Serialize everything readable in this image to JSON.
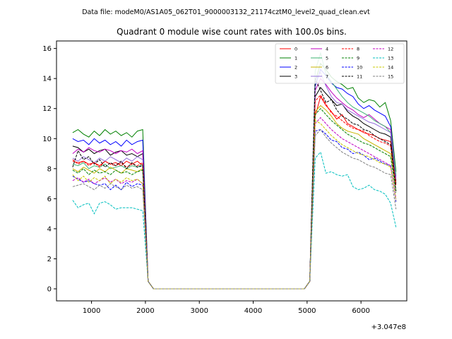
{
  "chart_data": {
    "type": "line",
    "suptitle": "Data file: modeM0/AS1A05_062T01_9000003132_21174cztM0_level2_quad_clean.evt",
    "title": "Quadrant 0 module wise count rates with 100.0s bins.",
    "xlabel": "",
    "ylabel": "",
    "x_offset_label": "+3.047e8",
    "xlim": [
      350,
      6850
    ],
    "ylim": [
      -0.8,
      16.5
    ],
    "x_ticks": [
      1000,
      2000,
      3000,
      4000,
      5000,
      6000
    ],
    "x_tick_labels": [
      "1000",
      "2000",
      "3000",
      "4000",
      "5000",
      "6000"
    ],
    "y_ticks": [
      0,
      2,
      4,
      6,
      8,
      10,
      12,
      14,
      16
    ],
    "y_tick_labels": [
      "0",
      "2",
      "4",
      "6",
      "8",
      "10",
      "12",
      "14",
      "16"
    ],
    "grid": false,
    "legend": "top-right",
    "x": [
      650,
      750,
      850,
      950,
      1050,
      1150,
      1250,
      1350,
      1450,
      1550,
      1650,
      1750,
      1850,
      1950,
      2050,
      2150,
      2250,
      2350,
      2450,
      2550,
      2650,
      2750,
      2850,
      2950,
      3050,
      3150,
      3250,
      3350,
      3450,
      3550,
      3650,
      3750,
      3850,
      3950,
      4050,
      4150,
      4250,
      4350,
      4450,
      4550,
      4650,
      4750,
      4850,
      4950,
      5050,
      5150,
      5250,
      5350,
      5450,
      5550,
      5650,
      5750,
      5850,
      5950,
      6050,
      6150,
      6250,
      6350,
      6450,
      6550,
      6650
    ],
    "series": [
      {
        "name": "0",
        "color": "#ff0000",
        "dash": "solid",
        "values": [
          8.5,
          8.4,
          8.5,
          8.3,
          8.4,
          8.2,
          8.5,
          8.3,
          8.4,
          8.2,
          8.5,
          8.3,
          8.5,
          8.2,
          0.5,
          0,
          0,
          0,
          0,
          0,
          0,
          0,
          0,
          0,
          0,
          0,
          0,
          0,
          0,
          0,
          0,
          0,
          0,
          0,
          0,
          0,
          0,
          0,
          0,
          0,
          0,
          0,
          0,
          0,
          0.5,
          11.5,
          12.8,
          12.2,
          11.8,
          11.3,
          11.6,
          11.0,
          10.8,
          10.6,
          10.4,
          10.3,
          10.2,
          10.0,
          9.9,
          9.8,
          7.2
        ]
      },
      {
        "name": "1",
        "color": "#008000",
        "dash": "solid",
        "values": [
          10.4,
          10.6,
          10.3,
          10.1,
          10.5,
          10.2,
          10.6,
          10.3,
          10.5,
          10.2,
          10.4,
          10.1,
          10.5,
          10.6,
          0.5,
          0,
          0,
          0,
          0,
          0,
          0,
          0,
          0,
          0,
          0,
          0,
          0,
          0,
          0,
          0,
          0,
          0,
          0,
          0,
          0,
          0,
          0,
          0,
          0,
          0,
          0,
          0,
          0,
          0,
          0.5,
          13.8,
          15.0,
          14.6,
          14.1,
          13.8,
          13.6,
          13.3,
          13.4,
          12.7,
          12.4,
          12.6,
          12.5,
          12.1,
          12.4,
          11.2,
          7.8
        ]
      },
      {
        "name": "2",
        "color": "#0000ff",
        "dash": "solid",
        "values": [
          10.0,
          9.8,
          9.9,
          9.6,
          10.0,
          9.7,
          9.9,
          9.6,
          9.8,
          9.5,
          9.9,
          9.6,
          9.8,
          9.9,
          0.5,
          0,
          0,
          0,
          0,
          0,
          0,
          0,
          0,
          0,
          0,
          0,
          0,
          0,
          0,
          0,
          0,
          0,
          0,
          0,
          0,
          0,
          0,
          0,
          0,
          0,
          0,
          0,
          0,
          0,
          0.5,
          13.5,
          14.6,
          14.2,
          13.7,
          13.4,
          13.3,
          13.0,
          12.8,
          12.3,
          12.0,
          12.2,
          11.9,
          11.7,
          11.5,
          10.8,
          7.5
        ]
      },
      {
        "name": "3",
        "color": "#000000",
        "dash": "solid",
        "values": [
          9.5,
          9.4,
          9.1,
          9.3,
          9.0,
          9.2,
          9.3,
          8.9,
          9.1,
          9.2,
          8.9,
          9.0,
          8.8,
          9.0,
          0.5,
          0,
          0,
          0,
          0,
          0,
          0,
          0,
          0,
          0,
          0,
          0,
          0,
          0,
          0,
          0,
          0,
          0,
          0,
          0,
          0,
          0,
          0,
          0,
          0,
          0,
          0,
          0,
          0,
          0,
          0.5,
          12.8,
          13.4,
          13.0,
          12.6,
          12.2,
          12.3,
          11.8,
          11.5,
          11.3,
          11.0,
          10.8,
          10.6,
          10.4,
          10.3,
          10.1,
          7.0
        ]
      },
      {
        "name": "4",
        "color": "#c000c0",
        "dash": "solid",
        "values": [
          9.0,
          9.3,
          9.1,
          9.4,
          9.2,
          9.1,
          9.3,
          9.2,
          9.0,
          9.2,
          9.1,
          9.3,
          9.0,
          9.2,
          0.5,
          0,
          0,
          0,
          0,
          0,
          0,
          0,
          0,
          0,
          0,
          0,
          0,
          0,
          0,
          0,
          0,
          0,
          0,
          0,
          0,
          0,
          0,
          0,
          0,
          0,
          0,
          0,
          0,
          0,
          0.5,
          13.2,
          14.0,
          13.6,
          13.1,
          12.7,
          12.4,
          12.1,
          11.9,
          11.6,
          11.4,
          11.6,
          11.3,
          11.0,
          10.8,
          10.6,
          7.4
        ]
      },
      {
        "name": "5",
        "color": "#3cb371",
        "dash": "solid",
        "values": [
          8.3,
          8.2,
          8.4,
          8.0,
          8.2,
          8.1,
          8.3,
          8.0,
          8.1,
          8.2,
          8.0,
          8.2,
          8.1,
          8.3,
          0.5,
          0,
          0,
          0,
          0,
          0,
          0,
          0,
          0,
          0,
          0,
          0,
          0,
          0,
          0,
          0,
          0,
          0,
          0,
          0,
          0,
          0,
          0,
          0,
          0,
          0,
          0,
          0,
          0,
          0,
          0.5,
          14.5,
          15.7,
          14.3,
          13.8,
          13.3,
          12.8,
          12.4,
          12.1,
          11.9,
          11.7,
          11.5,
          11.2,
          11.0,
          10.8,
          10.4,
          7.6
        ]
      },
      {
        "name": "6",
        "color": "#c8b400",
        "dash": "solid",
        "values": [
          8.0,
          7.8,
          8.1,
          7.9,
          7.7,
          8.0,
          7.8,
          8.1,
          7.9,
          7.7,
          8.0,
          7.9,
          7.8,
          8.0,
          0.5,
          0,
          0,
          0,
          0,
          0,
          0,
          0,
          0,
          0,
          0,
          0,
          0,
          0,
          0,
          0,
          0,
          0,
          0,
          0,
          0,
          0,
          0,
          0,
          0,
          0,
          0,
          0,
          0,
          0,
          0.5,
          11.8,
          12.2,
          11.9,
          11.5,
          11.0,
          10.7,
          10.5,
          10.4,
          10.3,
          10.0,
          9.8,
          9.6,
          9.4,
          9.2,
          9.0,
          6.5
        ]
      },
      {
        "name": "7",
        "color": "#9370db",
        "dash": "solid",
        "values": [
          8.7,
          8.5,
          8.8,
          8.6,
          8.4,
          8.7,
          8.5,
          8.8,
          8.6,
          8.4,
          8.7,
          8.5,
          8.8,
          8.6,
          0.5,
          0,
          0,
          0,
          0,
          0,
          0,
          0,
          0,
          0,
          0,
          0,
          0,
          0,
          0,
          0,
          0,
          0,
          0,
          0,
          0,
          0,
          0,
          0,
          0,
          0,
          0,
          0,
          0,
          0,
          0.5,
          13.9,
          14.4,
          13.5,
          12.8,
          12.4,
          12.3,
          11.9,
          11.7,
          11.5,
          11.3,
          11.1,
          11.0,
          10.8,
          10.6,
          10.4,
          7.3
        ]
      },
      {
        "name": "8",
        "color": "#ff0000",
        "dash": "dashed",
        "values": [
          8.6,
          8.3,
          8.5,
          8.2,
          8.4,
          8.1,
          8.5,
          8.3,
          8.2,
          8.4,
          8.1,
          8.3,
          8.2,
          8.4,
          0.5,
          0,
          0,
          0,
          0,
          0,
          0,
          0,
          0,
          0,
          0,
          0,
          0,
          0,
          0,
          0,
          0,
          0,
          0,
          0,
          0,
          0,
          0,
          0,
          0,
          0,
          0,
          0,
          0,
          0,
          0.5,
          12.5,
          12.9,
          12.3,
          11.7,
          11.5,
          11.2,
          10.9,
          10.7,
          10.6,
          10.5,
          10.2,
          10.0,
          9.8,
          9.7,
          9.5,
          6.9
        ]
      },
      {
        "name": "9",
        "color": "#008000",
        "dash": "dashed",
        "values": [
          7.9,
          7.7,
          8.0,
          7.6,
          7.9,
          7.7,
          7.8,
          7.6,
          7.9,
          7.7,
          7.8,
          7.6,
          7.8,
          7.9,
          0.5,
          0,
          0,
          0,
          0,
          0,
          0,
          0,
          0,
          0,
          0,
          0,
          0,
          0,
          0,
          0,
          0,
          0,
          0,
          0,
          0,
          0,
          0,
          0,
          0,
          0,
          0,
          0,
          0,
          0,
          0.5,
          11.6,
          12.0,
          11.6,
          11.2,
          10.9,
          10.6,
          10.3,
          10.1,
          9.9,
          9.7,
          9.6,
          9.4,
          9.2,
          9.0,
          8.8,
          6.4
        ]
      },
      {
        "name": "10",
        "color": "#0000ff",
        "dash": "dashed",
        "values": [
          7.5,
          7.3,
          7.1,
          7.2,
          7.0,
          6.9,
          7.0,
          6.6,
          6.9,
          6.6,
          7.1,
          6.8,
          7.0,
          6.9,
          0.5,
          0,
          0,
          0,
          0,
          0,
          0,
          0,
          0,
          0,
          0,
          0,
          0,
          0,
          0,
          0,
          0,
          0,
          0,
          0,
          0,
          0,
          0,
          0,
          0,
          0,
          0,
          0,
          0,
          0,
          0.5,
          10.5,
          10.6,
          10.3,
          9.9,
          9.8,
          9.4,
          9.3,
          9.0,
          9.1,
          8.9,
          8.6,
          8.7,
          8.5,
          8.3,
          8.2,
          5.8
        ]
      },
      {
        "name": "11",
        "color": "#000000",
        "dash": "dashed",
        "values": [
          8.1,
          9.2,
          8.6,
          8.8,
          8.3,
          8.6,
          8.1,
          8.4,
          8.2,
          8.5,
          8.0,
          8.4,
          8.1,
          8.2,
          0.5,
          0,
          0,
          0,
          0,
          0,
          0,
          0,
          0,
          0,
          0,
          0,
          0,
          0,
          0,
          0,
          0,
          0,
          0,
          0,
          0,
          0,
          0,
          0,
          0,
          0,
          0,
          0,
          0,
          0,
          0.5,
          14.0,
          13.2,
          12.4,
          12.6,
          11.9,
          11.5,
          11.3,
          11.0,
          10.9,
          10.6,
          10.5,
          10.2,
          10.0,
          9.8,
          9.6,
          6.5
        ]
      },
      {
        "name": "12",
        "color": "#c000c0",
        "dash": "dashed",
        "values": [
          7.2,
          7.4,
          7.1,
          7.3,
          7.0,
          7.2,
          7.4,
          7.1,
          7.3,
          7.0,
          7.2,
          7.1,
          7.3,
          7.0,
          0.5,
          0,
          0,
          0,
          0,
          0,
          0,
          0,
          0,
          0,
          0,
          0,
          0,
          0,
          0,
          0,
          0,
          0,
          0,
          0,
          0,
          0,
          0,
          0,
          0,
          0,
          0,
          0,
          0,
          0,
          0.5,
          11.0,
          11.4,
          11.0,
          10.6,
          10.3,
          10.0,
          9.8,
          9.6,
          9.4,
          9.2,
          9.0,
          8.8,
          8.6,
          8.4,
          8.2,
          6.0
        ]
      },
      {
        "name": "13",
        "color": "#00bfbf",
        "dash": "dashed",
        "values": [
          5.9,
          5.4,
          5.6,
          5.7,
          5.0,
          5.7,
          5.8,
          5.6,
          5.3,
          5.4,
          5.4,
          5.4,
          5.3,
          5.2,
          0.5,
          0,
          0,
          0,
          0,
          0,
          0,
          0,
          0,
          0,
          0,
          0,
          0,
          0,
          0,
          0,
          0,
          0,
          0,
          0,
          0,
          0,
          0,
          0,
          0,
          0,
          0,
          0,
          0,
          0,
          0.5,
          8.7,
          9.1,
          7.7,
          7.8,
          7.6,
          7.5,
          7.6,
          6.8,
          6.6,
          6.7,
          6.9,
          6.6,
          6.5,
          6.3,
          5.7,
          4.1
        ]
      },
      {
        "name": "14",
        "color": "#c8c800",
        "dash": "dashed",
        "values": [
          7.6,
          7.2,
          7.5,
          7.1,
          7.4,
          7.2,
          7.5,
          7.0,
          7.3,
          7.1,
          7.4,
          7.2,
          7.3,
          7.0,
          0.5,
          0,
          0,
          0,
          0,
          0,
          0,
          0,
          0,
          0,
          0,
          0,
          0,
          0,
          0,
          0,
          0,
          0,
          0,
          0,
          0,
          0,
          0,
          0,
          0,
          0,
          0,
          0,
          0,
          0,
          0.5,
          11.2,
          11.0,
          10.6,
          10.2,
          9.9,
          9.6,
          9.4,
          9.2,
          9.0,
          8.9,
          8.8,
          8.6,
          8.4,
          8.3,
          8.1,
          5.9
        ]
      },
      {
        "name": "15",
        "color": "#808080",
        "dash": "dashed",
        "values": [
          6.8,
          6.9,
          7.0,
          6.8,
          6.6,
          6.9,
          6.7,
          7.0,
          6.8,
          6.6,
          6.9,
          6.7,
          6.8,
          6.6,
          0.5,
          0,
          0,
          0,
          0,
          0,
          0,
          0,
          0,
          0,
          0,
          0,
          0,
          0,
          0,
          0,
          0,
          0,
          0,
          0,
          0,
          0,
          0,
          0,
          0,
          0,
          0,
          0,
          0,
          0,
          0.5,
          10.2,
          10.6,
          10.1,
          9.7,
          9.4,
          9.1,
          8.9,
          8.7,
          8.6,
          8.4,
          8.2,
          8.1,
          7.9,
          7.7,
          7.6,
          5.3
        ]
      }
    ]
  }
}
